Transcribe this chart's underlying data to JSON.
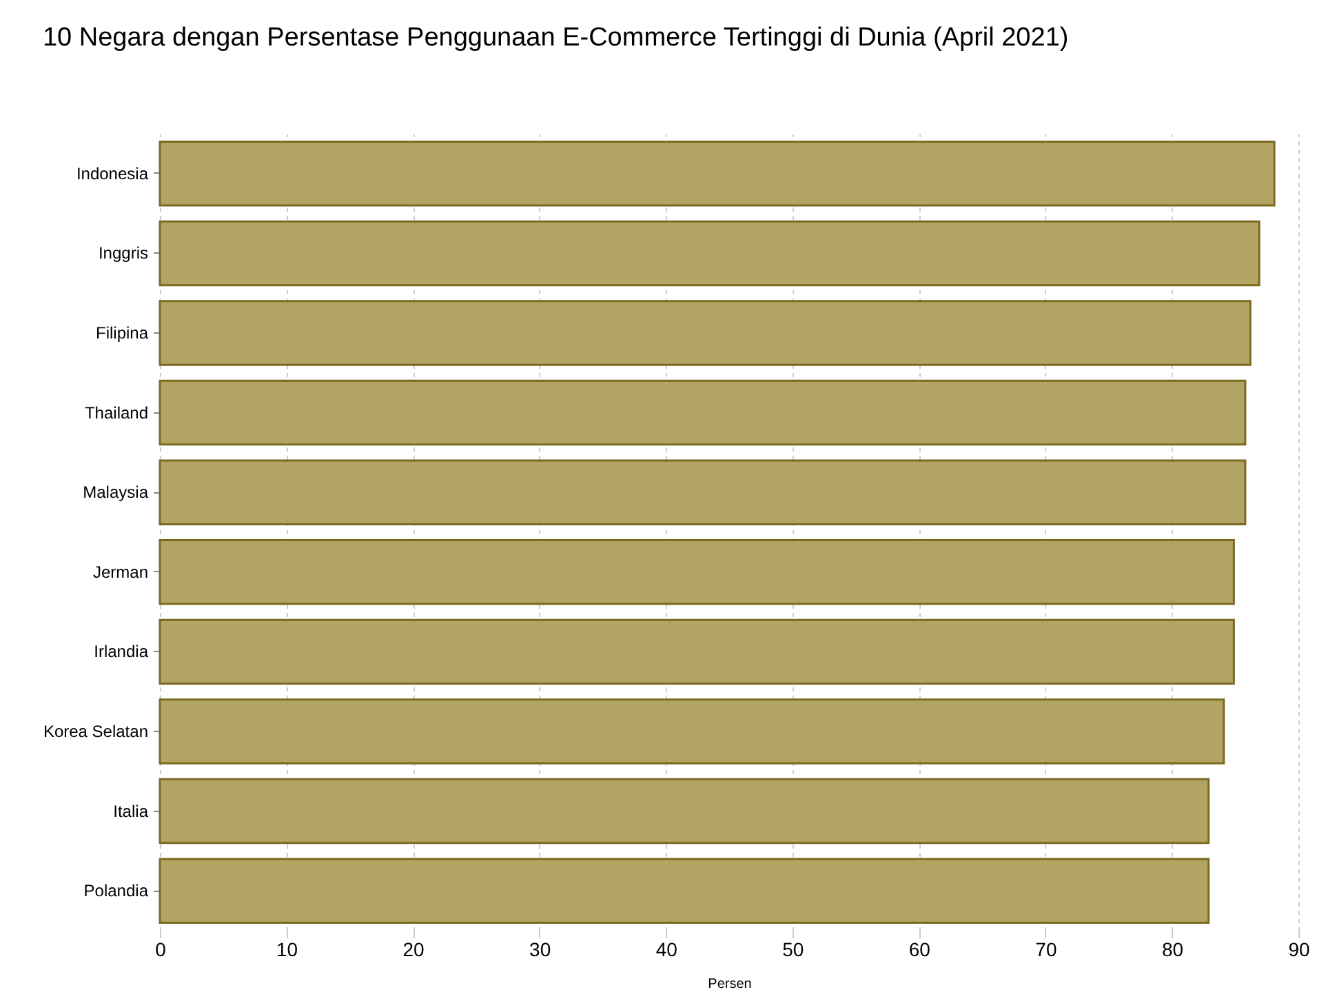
{
  "chart_data": {
    "type": "bar",
    "orientation": "horizontal",
    "title": "10 Negara dengan Persentase Penggunaan E-Commerce Tertinggi di Dunia (April 2021)",
    "xlabel": "Persen",
    "categories": [
      "Indonesia",
      "Inggris",
      "Filipina",
      "Thailand",
      "Malaysia",
      "Jerman",
      "Irlandia",
      "Korea Selatan",
      "Italia",
      "Polandia"
    ],
    "values": [
      88.1,
      86.9,
      86.2,
      85.8,
      85.8,
      84.9,
      84.9,
      84.1,
      82.9,
      82.9
    ],
    "color": "#b2a462",
    "xlim": [
      0,
      90
    ],
    "xticks": [
      0,
      10,
      20,
      30,
      40,
      50,
      60,
      70,
      80,
      90
    ],
    "grid": "x"
  }
}
